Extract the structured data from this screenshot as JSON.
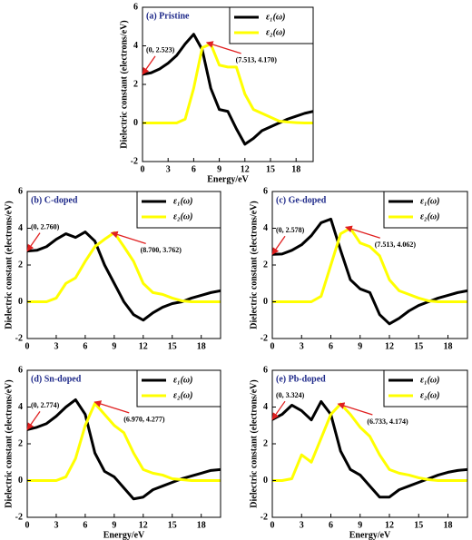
{
  "chart_data": [
    {
      "type": "line",
      "title": "(a) Pristine",
      "x_label": "Energy/eV",
      "y_label": "Dielectric constant (electrons/eV)",
      "x": [
        0,
        1,
        2,
        3,
        4,
        5,
        6,
        7,
        8,
        9,
        10,
        11,
        12,
        13,
        14,
        15,
        16,
        17,
        18,
        19,
        20
      ],
      "series": [
        {
          "name": "ε₁(ω)",
          "color": "#000000",
          "values": [
            2.52,
            2.6,
            2.8,
            3.1,
            3.5,
            4.1,
            4.6,
            3.8,
            1.8,
            0.7,
            0.6,
            -0.3,
            -1.1,
            -0.8,
            -0.4,
            -0.2,
            0.0,
            0.2,
            0.35,
            0.5,
            0.6
          ]
        },
        {
          "name": "ε₂(ω)",
          "color": "#ffff00",
          "values": [
            0,
            0,
            0,
            0,
            0,
            0.2,
            1.8,
            3.9,
            4.1,
            3.0,
            2.9,
            2.9,
            1.5,
            0.7,
            0.5,
            0.3,
            0.1,
            0.05,
            0.02,
            0,
            0
          ]
        }
      ],
      "annotations": [
        {
          "text": "(0, 2.523)",
          "x": 0,
          "y": 2.523
        },
        {
          "text": "(7.513, 4.170)",
          "x": 7.513,
          "y": 4.17
        }
      ],
      "xlim": [
        0,
        20
      ],
      "xticks": [
        0,
        3,
        6,
        9,
        12,
        15,
        18
      ],
      "ylim": [
        -2,
        6
      ],
      "yticks": [
        -2,
        0,
        2,
        4,
        6
      ]
    },
    {
      "type": "line",
      "title": "(b) C-doped",
      "y_label": "Dielectric constant (electrons/eV)",
      "x": [
        0,
        1,
        2,
        3,
        4,
        5,
        6,
        7,
        8,
        9,
        10,
        11,
        12,
        13,
        14,
        15,
        16,
        17,
        18,
        19,
        20
      ],
      "series": [
        {
          "name": "ε₁(ω)",
          "color": "#000000",
          "values": [
            2.76,
            2.8,
            3.0,
            3.4,
            3.7,
            3.5,
            3.8,
            3.3,
            2.0,
            1.0,
            0.0,
            -0.7,
            -1.0,
            -0.6,
            -0.3,
            -0.1,
            0.0,
            0.2,
            0.35,
            0.5,
            0.6
          ]
        },
        {
          "name": "ε₂(ω)",
          "color": "#ffff00",
          "values": [
            0,
            0,
            0,
            0.2,
            1.0,
            1.3,
            2.2,
            3.0,
            3.4,
            3.76,
            3.0,
            2.2,
            1.0,
            0.5,
            0.4,
            0.2,
            0.05,
            0,
            0,
            0,
            0
          ]
        }
      ],
      "annotations": [
        {
          "text": "(0, 2.760)",
          "x": 0,
          "y": 2.76
        },
        {
          "text": "(8.700, 3.762)",
          "x": 8.7,
          "y": 3.762
        }
      ],
      "xlim": [
        0,
        20
      ],
      "xticks": [
        0,
        3,
        6,
        9,
        12,
        15,
        18
      ],
      "ylim": [
        -2,
        6
      ],
      "yticks": [
        -2,
        0,
        2,
        4,
        6
      ]
    },
    {
      "type": "line",
      "title": "(c) Ge-doped",
      "y_label": "Dielectric constant (electrons/eV)",
      "x": [
        0,
        1,
        2,
        3,
        4,
        5,
        6,
        7,
        8,
        9,
        10,
        11,
        12,
        13,
        14,
        15,
        16,
        17,
        18,
        19,
        20
      ],
      "series": [
        {
          "name": "ε₁(ω)",
          "color": "#000000",
          "values": [
            2.58,
            2.6,
            2.8,
            3.1,
            3.6,
            4.3,
            4.5,
            2.8,
            1.2,
            0.7,
            0.5,
            -0.7,
            -1.2,
            -0.9,
            -0.5,
            -0.2,
            0,
            0.2,
            0.35,
            0.5,
            0.6
          ]
        },
        {
          "name": "ε₂(ω)",
          "color": "#ffff00",
          "values": [
            0,
            0,
            0,
            0,
            0,
            0.3,
            2.0,
            3.7,
            4.0,
            3.2,
            3.0,
            2.5,
            1.2,
            0.6,
            0.4,
            0.2,
            0.05,
            0,
            0,
            0,
            0
          ]
        }
      ],
      "annotations": [
        {
          "text": "(0, 2.578)",
          "x": 0,
          "y": 2.578
        },
        {
          "text": "(7.513, 4.062)",
          "x": 7.513,
          "y": 4.062
        }
      ],
      "xlim": [
        0,
        20
      ],
      "xticks": [
        0,
        3,
        6,
        9,
        12,
        15,
        18
      ],
      "ylim": [
        -2,
        6
      ],
      "yticks": [
        -2,
        0,
        2,
        4,
        6
      ]
    },
    {
      "type": "line",
      "title": "(d) Sn-doped",
      "x_label": "Energy/eV",
      "y_label": "Dielectric constant (electrons/eV)",
      "x": [
        0,
        1,
        2,
        3,
        4,
        5,
        6,
        7,
        8,
        9,
        10,
        11,
        12,
        13,
        14,
        15,
        16,
        17,
        18,
        19,
        20
      ],
      "series": [
        {
          "name": "ε₁(ω)",
          "color": "#000000",
          "values": [
            2.77,
            2.9,
            3.1,
            3.5,
            4.0,
            4.4,
            3.6,
            1.5,
            0.5,
            0.2,
            -0.4,
            -1.0,
            -0.9,
            -0.5,
            -0.3,
            -0.1,
            0.1,
            0.25,
            0.4,
            0.55,
            0.6
          ]
        },
        {
          "name": "ε₂(ω)",
          "color": "#ffff00",
          "values": [
            0,
            0,
            0,
            0,
            0.2,
            1.2,
            3.0,
            4.2,
            3.6,
            3.0,
            2.6,
            1.5,
            0.6,
            0.4,
            0.3,
            0.1,
            0.05,
            0,
            0,
            0,
            0
          ]
        }
      ],
      "annotations": [
        {
          "text": "(0, 2.774)",
          "x": 0,
          "y": 2.774
        },
        {
          "text": "(6.970, 4.277)",
          "x": 6.97,
          "y": 4.277
        }
      ],
      "xlim": [
        0,
        20
      ],
      "xticks": [
        0,
        3,
        6,
        9,
        12,
        15,
        18
      ],
      "ylim": [
        -2,
        6
      ],
      "yticks": [
        -2,
        0,
        2,
        4,
        6
      ]
    },
    {
      "type": "line",
      "title": "(e) Pb-doped",
      "x_label": "Energy/eV",
      "y_label": "Dielectric constant (electrons/eV)",
      "x": [
        0,
        1,
        2,
        3,
        4,
        5,
        6,
        7,
        8,
        9,
        10,
        11,
        12,
        13,
        14,
        15,
        16,
        17,
        18,
        19,
        20
      ],
      "series": [
        {
          "name": "ε₁(ω)",
          "color": "#000000",
          "values": [
            3.32,
            3.6,
            4.1,
            3.8,
            3.3,
            4.3,
            3.6,
            1.6,
            0.6,
            0.3,
            -0.3,
            -0.9,
            -0.9,
            -0.5,
            -0.3,
            -0.1,
            0.1,
            0.3,
            0.45,
            0.55,
            0.6
          ]
        },
        {
          "name": "ε₂(ω)",
          "color": "#ffff00",
          "values": [
            0,
            0,
            0.1,
            1.4,
            1.0,
            2.3,
            3.6,
            4.17,
            3.6,
            2.9,
            2.4,
            1.4,
            0.6,
            0.4,
            0.3,
            0.15,
            0.05,
            0,
            0,
            0,
            0
          ]
        }
      ],
      "annotations": [
        {
          "text": "(0, 3.324)",
          "x": 0,
          "y": 3.324
        },
        {
          "text": "(6.733, 4.174)",
          "x": 6.733,
          "y": 4.174
        }
      ],
      "xlim": [
        0,
        20
      ],
      "xticks": [
        0,
        3,
        6,
        9,
        12,
        15,
        18
      ],
      "ylim": [
        -2,
        6
      ],
      "yticks": [
        -2,
        0,
        2,
        4,
        6
      ]
    }
  ]
}
